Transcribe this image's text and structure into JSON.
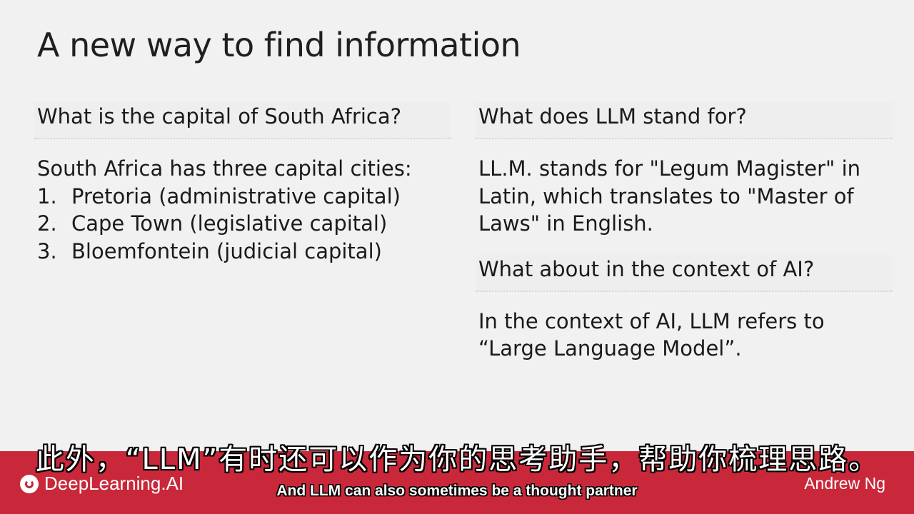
{
  "slide": {
    "title": "A new way to find information",
    "left": {
      "prompt": "What is the capital of South Africa?",
      "response_intro": "South Africa has three capital cities:",
      "items": [
        {
          "num": "1.",
          "text": "Pretoria (administrative capital)"
        },
        {
          "num": "2.",
          "text": "Cape Town (legislative capital)"
        },
        {
          "num": "3.",
          "text": "Bloemfontein (judicial capital)"
        }
      ]
    },
    "right": {
      "prompt_1": "What does LLM stand for?",
      "response_1_lines": [
        "LL.M. stands for \"Legum Magister\" in",
        "Latin, which translates to \"Master of",
        "Laws\" in English."
      ],
      "prompt_2": "What about in the context of AI?",
      "response_2_lines": [
        "In the context of AI, LLM refers to",
        "“Large Language Model”."
      ]
    }
  },
  "caption": {
    "chinese": "此外，“LLM”有时还可以作为你的思考助手，帮助你梳理思路。",
    "english": "And LLM can also sometimes be a thought partner"
  },
  "brand": {
    "logo_text": "DeepLearning.AI",
    "presenter": "Andrew Ng",
    "accent": "#c8283a"
  }
}
